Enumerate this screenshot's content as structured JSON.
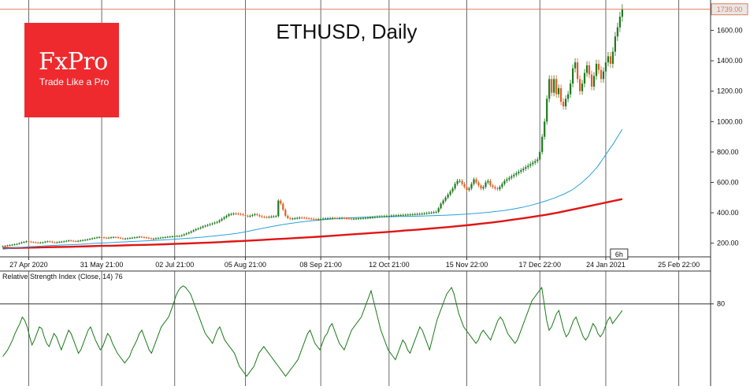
{
  "chart_data": [
    {
      "type": "candlestick",
      "title": "ETHUSD, Daily",
      "price_label": "1739.00",
      "y_ticks": [
        "200.00",
        "400.00",
        "600.00",
        "800.00",
        "1000.00",
        "1200.00",
        "1400.00",
        "1600.00"
      ],
      "y_tick_values": [
        200,
        400,
        600,
        800,
        1000,
        1200,
        1400,
        1600
      ],
      "ylim": [
        110,
        1800
      ],
      "x_labels": [
        "27 Apr 2020",
        "31 May 21:00",
        "02 Jul 21:00",
        "05 Aug 21:00",
        "08 Sep 21:00",
        "12 Oct 21:00",
        "15 Nov 22:00",
        "17 Dec 22:00",
        "24 Jan 2021",
        "25 Feb 22:00"
      ],
      "x_tick_index": [
        11,
        42,
        73,
        103,
        135,
        164,
        197,
        228,
        256,
        287
      ],
      "cursor_label": "6h",
      "colors": {
        "up": "#1f7a1f",
        "down": "#e0602a",
        "ma_slow": "#e11414",
        "ma_fast": "#2aa0dc",
        "price_line": "#e07b53"
      },
      "close": [
        180,
        182,
        185,
        188,
        190,
        192,
        195,
        200,
        205,
        208,
        212,
        210,
        208,
        206,
        204,
        203,
        204,
        205,
        210,
        212,
        210,
        206,
        204,
        206,
        209,
        210,
        212,
        215,
        218,
        216,
        214,
        212,
        215,
        218,
        220,
        222,
        225,
        228,
        232,
        235,
        238,
        240,
        238,
        236,
        234,
        236,
        238,
        240,
        239,
        236,
        232,
        229,
        230,
        232,
        234,
        236,
        238,
        240,
        242,
        240,
        238,
        236,
        232,
        228,
        230,
        232,
        234,
        236,
        238,
        240,
        242,
        243,
        245,
        247,
        247,
        247,
        252,
        258,
        264,
        270,
        277,
        285,
        292,
        297,
        303,
        310,
        315,
        320,
        325,
        330,
        335,
        340,
        350,
        360,
        370,
        380,
        390,
        392,
        395,
        394,
        392,
        390,
        385,
        380,
        377,
        380,
        385,
        390,
        385,
        378,
        373,
        372,
        371,
        373,
        375,
        376,
        378,
        480,
        460,
        420,
        380,
        365,
        360,
        362,
        364,
        366,
        368,
        367,
        366,
        364,
        362,
        360,
        358,
        355,
        358,
        360,
        362,
        363,
        364,
        365,
        366,
        365,
        364,
        365,
        366,
        364,
        363,
        362,
        360,
        361,
        362,
        363,
        364,
        365,
        366,
        367,
        369,
        371,
        373,
        375,
        376,
        377,
        378,
        379,
        380,
        381,
        382,
        383,
        384,
        385,
        386,
        387,
        388,
        389,
        390,
        391,
        392,
        393,
        394,
        396,
        398,
        400,
        402,
        404,
        406,
        430,
        460,
        480,
        500,
        520,
        540,
        560,
        590,
        610,
        610,
        590,
        570,
        550,
        560,
        590,
        620,
        600,
        580,
        560,
        570,
        600,
        610,
        580,
        570,
        560,
        555,
        570,
        590,
        610,
        620,
        630,
        640,
        650,
        660,
        670,
        680,
        690,
        700,
        710,
        720,
        730,
        740,
        750,
        800,
        900,
        1000,
        1150,
        1280,
        1190,
        1280,
        1180,
        1220,
        1130,
        1100,
        1150,
        1180,
        1250,
        1350,
        1390,
        1280,
        1200,
        1250,
        1320,
        1370,
        1310,
        1230,
        1300,
        1380,
        1340,
        1280,
        1330,
        1390,
        1430,
        1380,
        1460,
        1560,
        1620,
        1690,
        1739
      ],
      "ma_fast": {
        "start_index": 0,
        "values": [
          160,
          167,
          171,
          176,
          179,
          182,
          185,
          188,
          190,
          192,
          195,
          199,
          201,
          204,
          207,
          210,
          212,
          215,
          218,
          221,
          224,
          228,
          232,
          236,
          240,
          246,
          252,
          258,
          265,
          275,
          286,
          297,
          308,
          318,
          327,
          335,
          342,
          348,
          353,
          358,
          362,
          365,
          368,
          370,
          372,
          373,
          374,
          375,
          376,
          377,
          378,
          380,
          382,
          384,
          387,
          390,
          394,
          398,
          403,
          409,
          416,
          425,
          435,
          448,
          463,
          480,
          500,
          522,
          550,
          590,
          640,
          700,
          780,
          860,
          950
        ]
      },
      "ma_slow": {
        "start_index": 0,
        "values": [
          167,
          168,
          170,
          171,
          173,
          175,
          176,
          178,
          180,
          182,
          183,
          185,
          187,
          189,
          191,
          193,
          196,
          198,
          201,
          204,
          207,
          211,
          214,
          218,
          222,
          226,
          230,
          234,
          238,
          242,
          247,
          252,
          257,
          262,
          267,
          272,
          277,
          283,
          288,
          294,
          300,
          306,
          313,
          320,
          328,
          336,
          345,
          355,
          365,
          376,
          387,
          400,
          415,
          430,
          445,
          460,
          475,
          490
        ]
      },
      "series": [
        {
          "name": "Relative Strength Index (Close, 14) 76",
          "panel": "indicator",
          "level": 80,
          "values": [
            48,
            50,
            52,
            55,
            58,
            62,
            65,
            68,
            72,
            70,
            66,
            60,
            55,
            58,
            62,
            66,
            65,
            60,
            56,
            54,
            58,
            62,
            60,
            56,
            52,
            56,
            60,
            64,
            62,
            58,
            54,
            50,
            52,
            56,
            60,
            64,
            66,
            62,
            58,
            55,
            52,
            54,
            58,
            62,
            60,
            56,
            53,
            50,
            48,
            46,
            44,
            46,
            48,
            52,
            55,
            58,
            62,
            64,
            60,
            56,
            52,
            50,
            54,
            58,
            62,
            66,
            68,
            70,
            72,
            76,
            80,
            85,
            88,
            90,
            91,
            90,
            88,
            86,
            82,
            78,
            74,
            70,
            66,
            62,
            60,
            58,
            56,
            60,
            64,
            66,
            62,
            58,
            56,
            54,
            52,
            50,
            46,
            42,
            40,
            38,
            36,
            38,
            40,
            42,
            46,
            50,
            52,
            54,
            52,
            50,
            48,
            46,
            44,
            42,
            40,
            38,
            36,
            38,
            40,
            42,
            44,
            46,
            50,
            54,
            58,
            62,
            64,
            60,
            56,
            54,
            52,
            56,
            60,
            62,
            66,
            68,
            64,
            60,
            56,
            54,
            52,
            56,
            60,
            64,
            66,
            68,
            70,
            72,
            76,
            80,
            84,
            88,
            82,
            76,
            70,
            64,
            60,
            56,
            52,
            50,
            48,
            46,
            50,
            54,
            58,
            56,
            52,
            50,
            54,
            58,
            62,
            66,
            64,
            60,
            56,
            52,
            58,
            64,
            70,
            74,
            78,
            82,
            86,
            88,
            90,
            86,
            80,
            74,
            70,
            66,
            64,
            62,
            60,
            58,
            56,
            58,
            62,
            64,
            62,
            60,
            58,
            62,
            66,
            70,
            72,
            70,
            66,
            62,
            60,
            58,
            56,
            58,
            62,
            66,
            70,
            74,
            78,
            82,
            84,
            86,
            88,
            90,
            80,
            70,
            64,
            66,
            70,
            74,
            76,
            70,
            64,
            60,
            62,
            66,
            70,
            72,
            68,
            64,
            60,
            58,
            60,
            64,
            68,
            66,
            62,
            60,
            62,
            66,
            70,
            72,
            68,
            70,
            72,
            74,
            76
          ]
        }
      ]
    }
  ],
  "logo": {
    "main": "FxPro",
    "sub": "Trade Like a Pro"
  }
}
